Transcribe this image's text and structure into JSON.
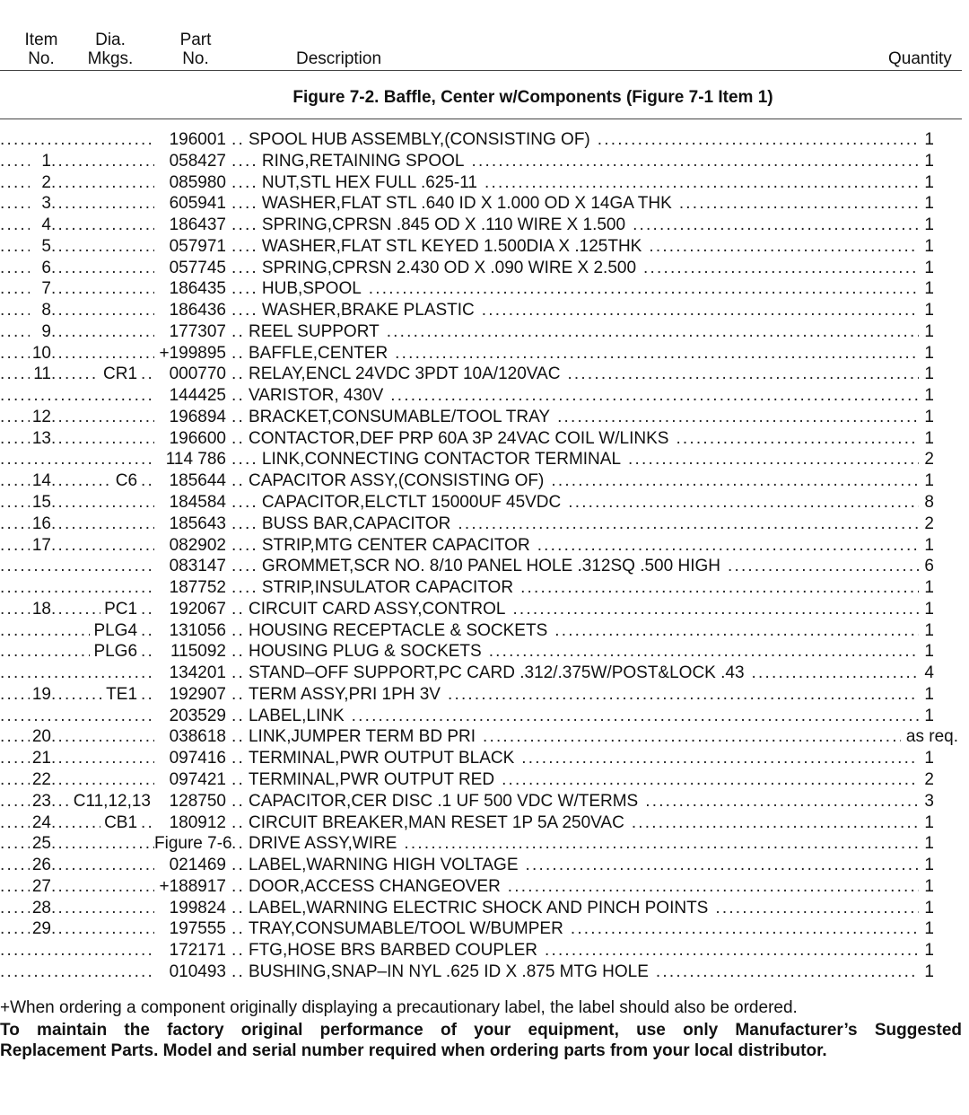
{
  "header": {
    "item_1": "Item",
    "item_2": "No.",
    "dia_1": "Dia.",
    "dia_2": "Mkgs.",
    "part_1": "Part",
    "part_2": "No.",
    "description": "Description",
    "quantity": "Quantity"
  },
  "figure_title": "Figure 7-2. Baffle, Center w/Components (Figure 7-1 Item 1)",
  "rows": [
    {
      "item": "",
      "dia": "",
      "part": "196001",
      "level": 1,
      "desc": "SPOOL HUB ASSEMBLY,(CONSISTING OF)",
      "qty": "1"
    },
    {
      "item": "1",
      "dia": "",
      "part": "058427",
      "level": 2,
      "desc": "RING,RETAINING SPOOL",
      "qty": "1"
    },
    {
      "item": "2",
      "dia": "",
      "part": "085980",
      "level": 2,
      "desc": "NUT,STL HEX FULL .625-11",
      "qty": "1"
    },
    {
      "item": "3",
      "dia": "",
      "part": "605941",
      "level": 2,
      "desc": "WASHER,FLAT STL .640 ID X 1.000 OD X 14GA THK",
      "qty": "1"
    },
    {
      "item": "4",
      "dia": "",
      "part": "186437",
      "level": 2,
      "desc": "SPRING,CPRSN .845 OD X .110 WIRE X 1.500",
      "qty": "1"
    },
    {
      "item": "5",
      "dia": "",
      "part": "057971",
      "level": 2,
      "desc": "WASHER,FLAT STL KEYED 1.500DIA X .125THK",
      "qty": "1"
    },
    {
      "item": "6",
      "dia": "",
      "part": "057745",
      "level": 2,
      "desc": "SPRING,CPRSN 2.430 OD X .090 WIRE X 2.500",
      "qty": "1"
    },
    {
      "item": "7",
      "dia": "",
      "part": "186435",
      "level": 2,
      "desc": "HUB,SPOOL",
      "qty": "1"
    },
    {
      "item": "8",
      "dia": "",
      "part": "186436",
      "level": 2,
      "desc": "WASHER,BRAKE PLASTIC",
      "qty": "1"
    },
    {
      "item": "9",
      "dia": "",
      "part": "177307",
      "level": 1,
      "desc": "REEL SUPPORT",
      "qty": "1"
    },
    {
      "item": "10",
      "dia": "",
      "part": "+199895",
      "level": 1,
      "desc": "BAFFLE,CENTER",
      "qty": "1"
    },
    {
      "item": "11",
      "dia": "CR1",
      "part": "000770",
      "level": 1,
      "desc": "RELAY,ENCL 24VDC 3PDT 10A/120VAC",
      "qty": "1"
    },
    {
      "item": "",
      "dia": "",
      "part": "144425",
      "level": 1,
      "desc": "VARISTOR, 430V",
      "qty": "1"
    },
    {
      "item": "12",
      "dia": "",
      "part": "196894",
      "level": 1,
      "desc": "BRACKET,CONSUMABLE/TOOL TRAY",
      "qty": "1"
    },
    {
      "item": "13",
      "dia": "",
      "part": "196600",
      "level": 1,
      "desc": "CONTACTOR,DEF PRP 60A 3P 24VAC COIL W/LINKS",
      "qty": "1"
    },
    {
      "item": "",
      "dia": "",
      "part": "114 786",
      "level": 2,
      "desc": "LINK,CONNECTING CONTACTOR TERMINAL",
      "qty": "2"
    },
    {
      "item": "14",
      "dia": "C6",
      "part": "185644",
      "level": 1,
      "desc": "CAPACITOR ASSY,(CONSISTING OF)",
      "qty": "1"
    },
    {
      "item": "15",
      "dia": "",
      "part": "184584",
      "level": 2,
      "desc": "CAPACITOR,ELCTLT 15000UF 45VDC",
      "qty": "8"
    },
    {
      "item": "16",
      "dia": "",
      "part": "185643",
      "level": 2,
      "desc": "BUSS BAR,CAPACITOR",
      "qty": "2"
    },
    {
      "item": "17",
      "dia": "",
      "part": "082902",
      "level": 2,
      "desc": "STRIP,MTG CENTER CAPACITOR",
      "qty": "1"
    },
    {
      "item": "",
      "dia": "",
      "part": "083147",
      "level": 2,
      "desc": "GROMMET,SCR NO. 8/10 PANEL HOLE .312SQ .500 HIGH",
      "qty": "6"
    },
    {
      "item": "",
      "dia": "",
      "part": "187752",
      "level": 2,
      "desc": "STRIP,INSULATOR CAPACITOR",
      "qty": "1"
    },
    {
      "item": "18",
      "dia": "PC1",
      "part": "192067",
      "level": 1,
      "desc": "CIRCUIT CARD ASSY,CONTROL",
      "qty": "1"
    },
    {
      "item": "",
      "dia": "PLG4",
      "part": "131056",
      "level": 1,
      "desc": "HOUSING RECEPTACLE & SOCKETS",
      "qty": "1"
    },
    {
      "item": "",
      "dia": "PLG6",
      "part": "115092",
      "level": 1,
      "desc": "HOUSING PLUG & SOCKETS",
      "qty": "1"
    },
    {
      "item": "",
      "dia": "",
      "part": "134201",
      "level": 1,
      "desc": "STAND–OFF SUPPORT,PC CARD .312/.375W/POST&LOCK .43",
      "qty": "4"
    },
    {
      "item": "19",
      "dia": "TE1",
      "part": "192907",
      "level": 1,
      "desc": "TERM ASSY,PRI 1PH 3V",
      "qty": "1"
    },
    {
      "item": "",
      "dia": "",
      "part": "203529",
      "level": 1,
      "desc": "LABEL,LINK",
      "qty": "1"
    },
    {
      "item": "20",
      "dia": "",
      "part": "038618",
      "level": 1,
      "desc": "LINK,JUMPER TERM BD PRI",
      "qty": "as req."
    },
    {
      "item": "21",
      "dia": "",
      "part": "097416",
      "level": 1,
      "desc": "TERMINAL,PWR OUTPUT BLACK",
      "qty": "1"
    },
    {
      "item": "22",
      "dia": "",
      "part": "097421",
      "level": 1,
      "desc": "TERMINAL,PWR OUTPUT RED",
      "qty": "2"
    },
    {
      "item": "23",
      "dia": "C11,12,13",
      "part": "128750",
      "level": 1,
      "desc": "CAPACITOR,CER DISC .1 UF 500 VDC W/TERMS",
      "qty": "3"
    },
    {
      "item": "24",
      "dia": "CB1",
      "part": "180912",
      "level": 1,
      "desc": "CIRCUIT BREAKER,MAN RESET 1P 5A 250VAC",
      "qty": "1"
    },
    {
      "item": "25",
      "dia": "",
      "part": "Figure 7-6",
      "level": 1,
      "desc": "DRIVE ASSY,WIRE",
      "qty": "1"
    },
    {
      "item": "26",
      "dia": "",
      "part": "021469",
      "level": 1,
      "desc": "LABEL,WARNING HIGH VOLTAGE",
      "qty": "1"
    },
    {
      "item": "27",
      "dia": "",
      "part": "+188917",
      "level": 1,
      "desc": "DOOR,ACCESS CHANGEOVER",
      "qty": "1"
    },
    {
      "item": "28",
      "dia": "",
      "part": "199824",
      "level": 1,
      "desc": "LABEL,WARNING ELECTRIC SHOCK AND PINCH POINTS",
      "qty": "1"
    },
    {
      "item": "29",
      "dia": "",
      "part": "197555",
      "level": 1,
      "desc": "TRAY,CONSUMABLE/TOOL W/BUMPER",
      "qty": "1"
    },
    {
      "item": "",
      "dia": "",
      "part": "172171",
      "level": 1,
      "desc": "FTG,HOSE BRS BARBED COUPLER",
      "qty": "1"
    },
    {
      "item": "",
      "dia": "",
      "part": "010493",
      "level": 1,
      "desc": "BUSHING,SNAP–IN NYL .625 ID X .875 MTG HOLE",
      "qty": "1"
    }
  ],
  "footer": {
    "note": "+When ordering a component originally displaying a precautionary label, the label should also be ordered.",
    "warning_1": "To maintain the factory original performance of your equipment, use only Manufacturer’s Suggested",
    "warning_2": "Replacement Parts. Model and serial number required when ordering parts from your local distributor."
  }
}
